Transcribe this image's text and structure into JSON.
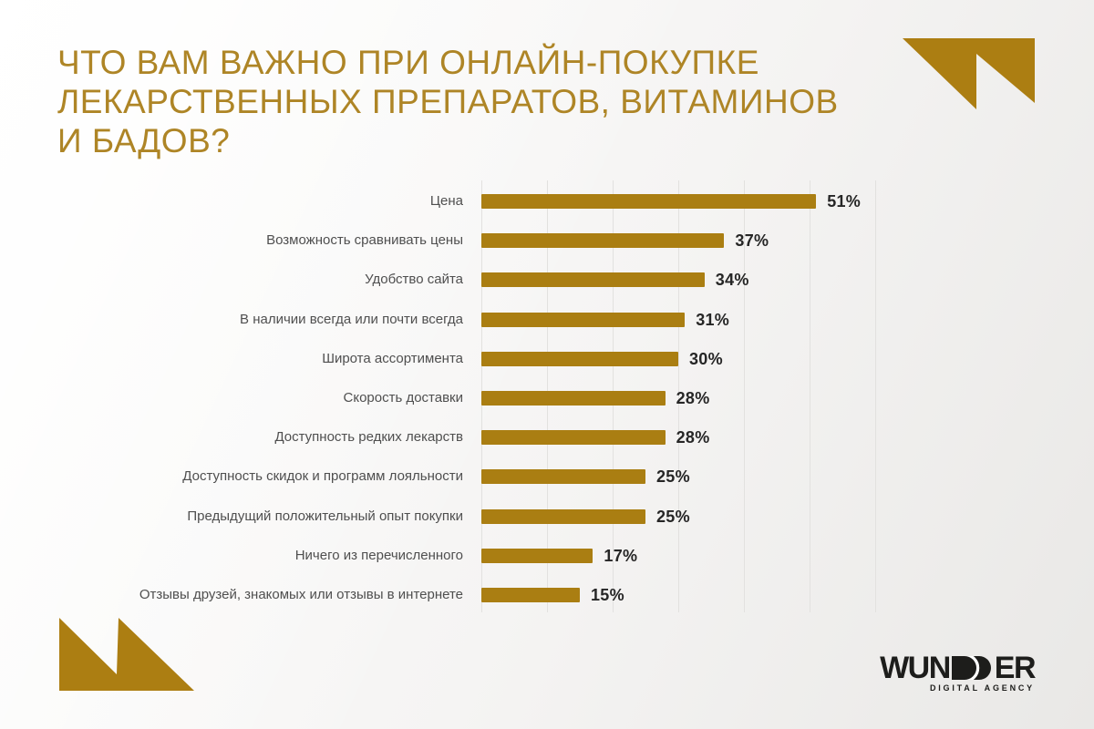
{
  "title": {
    "lines": [
      "ЧТО ВАМ ВАЖНО ПРИ ОНЛАЙН-ПОКУПКЕ",
      "ЛЕКАРСТВЕННЫХ ПРЕПАРАТОВ, ВИТАМИНОВ",
      "И БАДОВ?"
    ],
    "color": "#AE8526"
  },
  "chart_data": {
    "type": "bar",
    "orientation": "horizontal",
    "title": "ЧТО ВАМ ВАЖНО ПРИ ОНЛАЙН-ПОКУПКЕ ЛЕКАРСТВЕННЫХ ПРЕПАРАТОВ, ВИТАМИНОВ И БАДОВ?",
    "categories": [
      "Цена",
      "Возможность сравнивать цены",
      "Удобство сайта",
      "В наличии всегда или почти всегда",
      "Широта ассортимента",
      "Скорость доставки",
      "Доступность редких лекарств",
      "Доступность скидок и программ лояльности",
      "Предыдущий положительный опыт покупки",
      "Ничего из перечисленного",
      "Отзывы друзей, знакомых или отзывы в интернете"
    ],
    "values": [
      51,
      37,
      34,
      31,
      30,
      28,
      28,
      25,
      25,
      17,
      15
    ],
    "value_labels": [
      "51%",
      "37%",
      "34%",
      "31%",
      "30%",
      "28%",
      "28%",
      "25%",
      "25%",
      "17%",
      "15%"
    ],
    "xlim": [
      0,
      60
    ],
    "gridlines": [
      0,
      10,
      20,
      30,
      40,
      50,
      60
    ],
    "grid": true,
    "legend": false,
    "xlabel": "",
    "ylabel": "",
    "bar_color": "#AA7E12",
    "value_label_color": "#262626",
    "category_label_color": "#4f4f4f",
    "gridline_color": "#e2e1df"
  },
  "decorations": {
    "corner_color": "#AC7E12"
  },
  "logo": {
    "wordmark_prefix": "WUN",
    "wordmark_suffix": "ER",
    "tagline": "DIGITAL AGENCY",
    "color": "#1d1d1b"
  }
}
